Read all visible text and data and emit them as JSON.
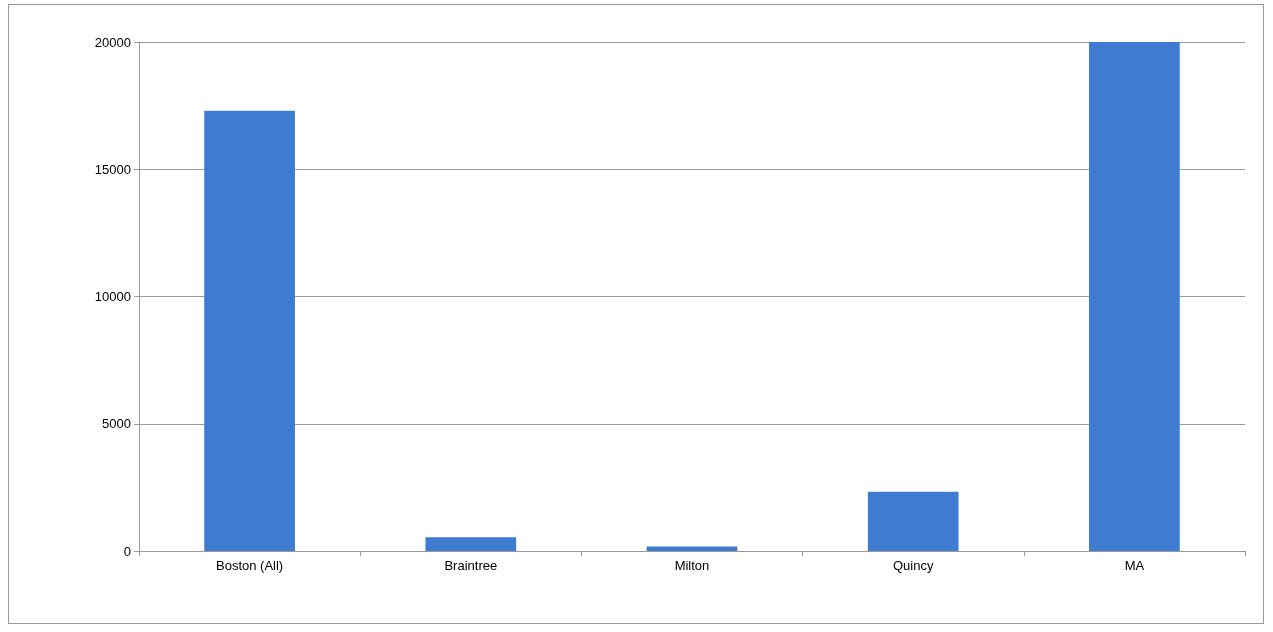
{
  "chart_data": {
    "type": "bar",
    "categories": [
      "Boston (All)",
      "Braintree",
      "Milton",
      "Quincy",
      "MA"
    ],
    "values": [
      17300,
      540,
      180,
      2330,
      20000
    ],
    "color": "#3f7bd0",
    "ylim": [
      0,
      20000
    ],
    "yticks": [
      0,
      5000,
      10000,
      15000,
      20000
    ],
    "grid": "y"
  }
}
